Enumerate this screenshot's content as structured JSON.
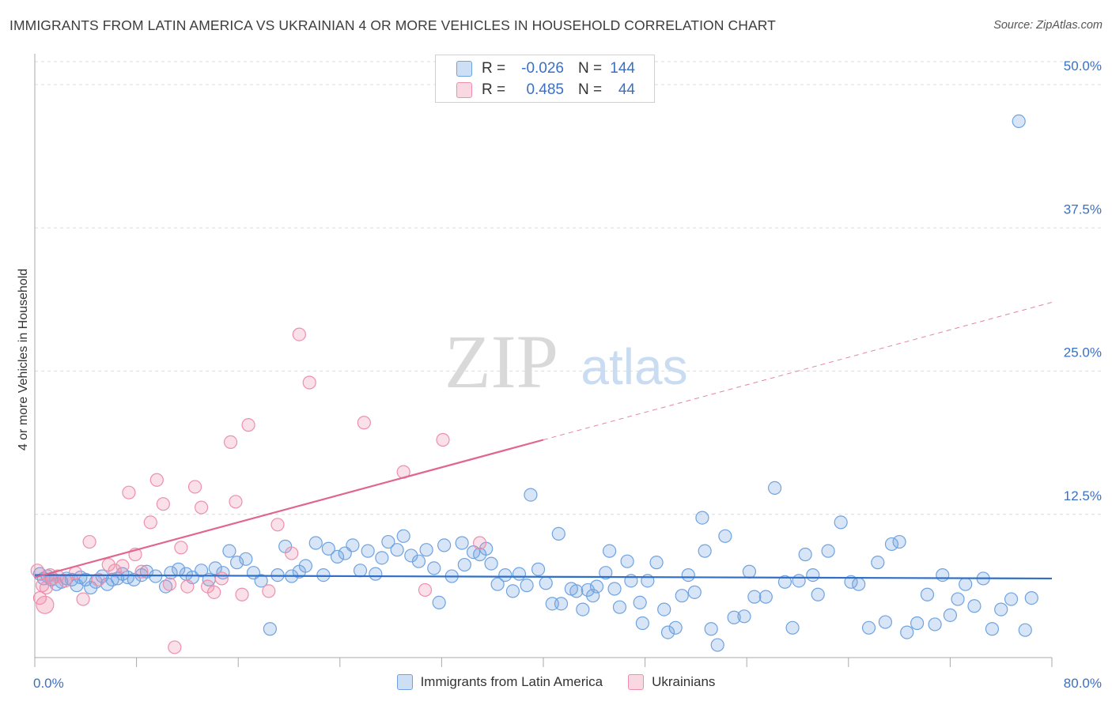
{
  "title": "IMMIGRANTS FROM LATIN AMERICA VS UKRAINIAN 4 OR MORE VEHICLES IN HOUSEHOLD CORRELATION CHART",
  "source": "Source: ZipAtlas.com",
  "watermark": {
    "zip": "ZIP",
    "atlas": "atlas"
  },
  "stats": {
    "r_label": "R =",
    "n_label": "N =",
    "rows": [
      {
        "r": "-0.026",
        "n": "144",
        "color": "#6fa3e0"
      },
      {
        "r": "0.485",
        "n": "44",
        "color": "#ee8fad"
      }
    ]
  },
  "legend": [
    {
      "label": "Immigrants from Latin America",
      "color": "#6fa3e0"
    },
    {
      "label": "Ukrainians",
      "color": "#ee8fad"
    }
  ],
  "chart_data": {
    "type": "scatter",
    "title": "IMMIGRANTS FROM LATIN AMERICA VS UKRAINIAN 4 OR MORE VEHICLES IN HOUSEHOLD CORRELATION CHART",
    "xlabel": "",
    "ylabel": "4 or more Vehicles in Household",
    "xlim": [
      0,
      80
    ],
    "ylim": [
      0,
      52
    ],
    "x_tick_labels": [
      {
        "value": 0,
        "label": "0.0%"
      },
      {
        "value": 80,
        "label": "80.0%"
      }
    ],
    "y_tick_labels": [
      {
        "value": 12.5,
        "label": "12.5%"
      },
      {
        "value": 25,
        "label": "25.0%"
      },
      {
        "value": 37.5,
        "label": "37.5%"
      },
      {
        "value": 50,
        "label": "50.0%"
      }
    ],
    "grid": true,
    "legend_position": "bottom",
    "series": [
      {
        "name": "Immigrants from Latin America",
        "color": "#6fa3e0",
        "trend": {
          "x": [
            0,
            80
          ],
          "y": [
            7.2,
            6.9
          ],
          "dashed_from": null
        },
        "points": [
          [
            0.4,
            7.3
          ],
          [
            0.7,
            6.9
          ],
          [
            1.0,
            7.1
          ],
          [
            1.3,
            6.8
          ],
          [
            1.7,
            6.4
          ],
          [
            2.1,
            6.6
          ],
          [
            2.5,
            6.9
          ],
          [
            2.9,
            6.8
          ],
          [
            3.3,
            6.3
          ],
          [
            3.6,
            7.0
          ],
          [
            4.0,
            6.8
          ],
          [
            4.4,
            6.1
          ],
          [
            4.8,
            6.6
          ],
          [
            5.3,
            7.1
          ],
          [
            5.7,
            6.4
          ],
          [
            6.1,
            6.8
          ],
          [
            6.5,
            6.9
          ],
          [
            6.9,
            7.3
          ],
          [
            7.3,
            7.0
          ],
          [
            7.8,
            6.8
          ],
          [
            8.4,
            7.2
          ],
          [
            8.8,
            7.5
          ],
          [
            9.5,
            7.1
          ],
          [
            10.3,
            6.2
          ],
          [
            10.7,
            7.4
          ],
          [
            11.3,
            7.7
          ],
          [
            11.9,
            7.3
          ],
          [
            12.4,
            7.0
          ],
          [
            13.1,
            7.6
          ],
          [
            13.7,
            6.8
          ],
          [
            14.2,
            7.8
          ],
          [
            14.8,
            7.4
          ],
          [
            15.3,
            9.3
          ],
          [
            15.9,
            8.3
          ],
          [
            16.6,
            8.6
          ],
          [
            17.2,
            7.4
          ],
          [
            17.8,
            6.7
          ],
          [
            18.5,
            2.5
          ],
          [
            19.1,
            7.2
          ],
          [
            19.7,
            9.7
          ],
          [
            20.2,
            7.1
          ],
          [
            20.8,
            7.5
          ],
          [
            21.3,
            8.0
          ],
          [
            22.1,
            10.0
          ],
          [
            22.7,
            7.2
          ],
          [
            23.1,
            9.5
          ],
          [
            23.8,
            8.8
          ],
          [
            24.4,
            9.1
          ],
          [
            25.0,
            9.8
          ],
          [
            25.6,
            7.6
          ],
          [
            26.2,
            9.3
          ],
          [
            26.8,
            7.3
          ],
          [
            27.3,
            8.7
          ],
          [
            27.8,
            10.1
          ],
          [
            28.5,
            9.4
          ],
          [
            29.0,
            10.6
          ],
          [
            29.6,
            8.9
          ],
          [
            30.2,
            8.4
          ],
          [
            30.8,
            9.4
          ],
          [
            31.4,
            7.8
          ],
          [
            31.8,
            4.8
          ],
          [
            32.2,
            9.8
          ],
          [
            32.8,
            7.1
          ],
          [
            33.6,
            10.0
          ],
          [
            33.8,
            8.1
          ],
          [
            34.5,
            9.2
          ],
          [
            35.0,
            9.0
          ],
          [
            35.5,
            9.5
          ],
          [
            35.9,
            8.2
          ],
          [
            36.4,
            6.4
          ],
          [
            37.0,
            7.2
          ],
          [
            37.6,
            5.8
          ],
          [
            38.1,
            7.3
          ],
          [
            38.7,
            6.3
          ],
          [
            39.0,
            14.2
          ],
          [
            39.6,
            7.7
          ],
          [
            40.2,
            6.5
          ],
          [
            40.7,
            4.7
          ],
          [
            41.2,
            10.8
          ],
          [
            41.4,
            4.7
          ],
          [
            42.2,
            6.0
          ],
          [
            42.6,
            5.8
          ],
          [
            43.1,
            4.2
          ],
          [
            43.5,
            5.9
          ],
          [
            43.9,
            5.4
          ],
          [
            44.2,
            6.2
          ],
          [
            44.9,
            7.4
          ],
          [
            45.2,
            9.3
          ],
          [
            45.6,
            6.0
          ],
          [
            46.0,
            4.4
          ],
          [
            46.6,
            8.4
          ],
          [
            46.9,
            6.7
          ],
          [
            47.6,
            4.8
          ],
          [
            47.8,
            3.0
          ],
          [
            48.2,
            6.7
          ],
          [
            48.9,
            8.3
          ],
          [
            49.5,
            4.2
          ],
          [
            49.8,
            2.2
          ],
          [
            50.4,
            2.6
          ],
          [
            50.9,
            5.4
          ],
          [
            51.4,
            7.2
          ],
          [
            51.9,
            5.7
          ],
          [
            52.5,
            12.2
          ],
          [
            52.7,
            9.3
          ],
          [
            53.2,
            2.5
          ],
          [
            53.7,
            1.1
          ],
          [
            54.3,
            10.6
          ],
          [
            55.0,
            3.5
          ],
          [
            55.8,
            3.6
          ],
          [
            56.2,
            7.5
          ],
          [
            56.6,
            5.3
          ],
          [
            57.5,
            5.3
          ],
          [
            58.2,
            14.8
          ],
          [
            59.0,
            6.6
          ],
          [
            59.6,
            2.6
          ],
          [
            60.1,
            6.7
          ],
          [
            60.6,
            9.0
          ],
          [
            61.2,
            7.2
          ],
          [
            61.6,
            5.5
          ],
          [
            62.4,
            9.3
          ],
          [
            63.4,
            11.8
          ],
          [
            64.2,
            6.6
          ],
          [
            64.8,
            6.4
          ],
          [
            65.6,
            2.6
          ],
          [
            66.3,
            8.3
          ],
          [
            66.9,
            3.1
          ],
          [
            67.4,
            9.9
          ],
          [
            68.0,
            10.1
          ],
          [
            68.6,
            2.2
          ],
          [
            69.4,
            3.0
          ],
          [
            70.2,
            5.5
          ],
          [
            70.8,
            2.9
          ],
          [
            71.4,
            7.2
          ],
          [
            72.0,
            3.7
          ],
          [
            72.6,
            5.1
          ],
          [
            73.2,
            6.4
          ],
          [
            73.9,
            4.5
          ],
          [
            74.6,
            6.9
          ],
          [
            75.3,
            2.5
          ],
          [
            76.0,
            4.2
          ],
          [
            76.8,
            5.1
          ],
          [
            77.4,
            46.8
          ],
          [
            77.9,
            2.4
          ],
          [
            78.4,
            5.2
          ]
        ]
      },
      {
        "name": "Ukrainians",
        "color": "#ee8fad",
        "trend": {
          "x": [
            0,
            40,
            80
          ],
          "y": [
            7.0,
            19.0,
            31.0
          ],
          "dashed_from": 40
        },
        "points": [
          [
            0.2,
            7.6
          ],
          [
            0.4,
            5.2
          ],
          [
            0.9,
            6.1
          ],
          [
            1.4,
            6.9
          ],
          [
            1.8,
            7.1
          ],
          [
            2.4,
            6.7
          ],
          [
            3.2,
            7.4
          ],
          [
            3.8,
            5.1
          ],
          [
            4.3,
            10.1
          ],
          [
            5.0,
            6.8
          ],
          [
            5.8,
            8.1
          ],
          [
            6.3,
            7.6
          ],
          [
            6.9,
            8.0
          ],
          [
            7.4,
            14.4
          ],
          [
            7.9,
            9.0
          ],
          [
            8.4,
            7.5
          ],
          [
            9.1,
            11.8
          ],
          [
            9.6,
            15.5
          ],
          [
            10.1,
            13.4
          ],
          [
            10.6,
            6.4
          ],
          [
            11.0,
            0.9
          ],
          [
            11.5,
            9.6
          ],
          [
            12.0,
            6.2
          ],
          [
            12.6,
            14.9
          ],
          [
            13.1,
            13.1
          ],
          [
            13.6,
            6.2
          ],
          [
            14.1,
            5.7
          ],
          [
            14.7,
            6.9
          ],
          [
            15.4,
            18.8
          ],
          [
            15.8,
            13.6
          ],
          [
            16.3,
            5.5
          ],
          [
            16.8,
            20.3
          ],
          [
            18.4,
            5.8
          ],
          [
            19.1,
            11.6
          ],
          [
            20.2,
            9.1
          ],
          [
            20.8,
            28.2
          ],
          [
            21.6,
            24.0
          ],
          [
            25.9,
            20.5
          ],
          [
            29.0,
            16.2
          ],
          [
            30.7,
            5.9
          ],
          [
            32.1,
            19.0
          ],
          [
            35.0,
            10.0
          ],
          [
            0.6,
            6.3
          ],
          [
            1.2,
            7.2
          ]
        ]
      }
    ]
  }
}
